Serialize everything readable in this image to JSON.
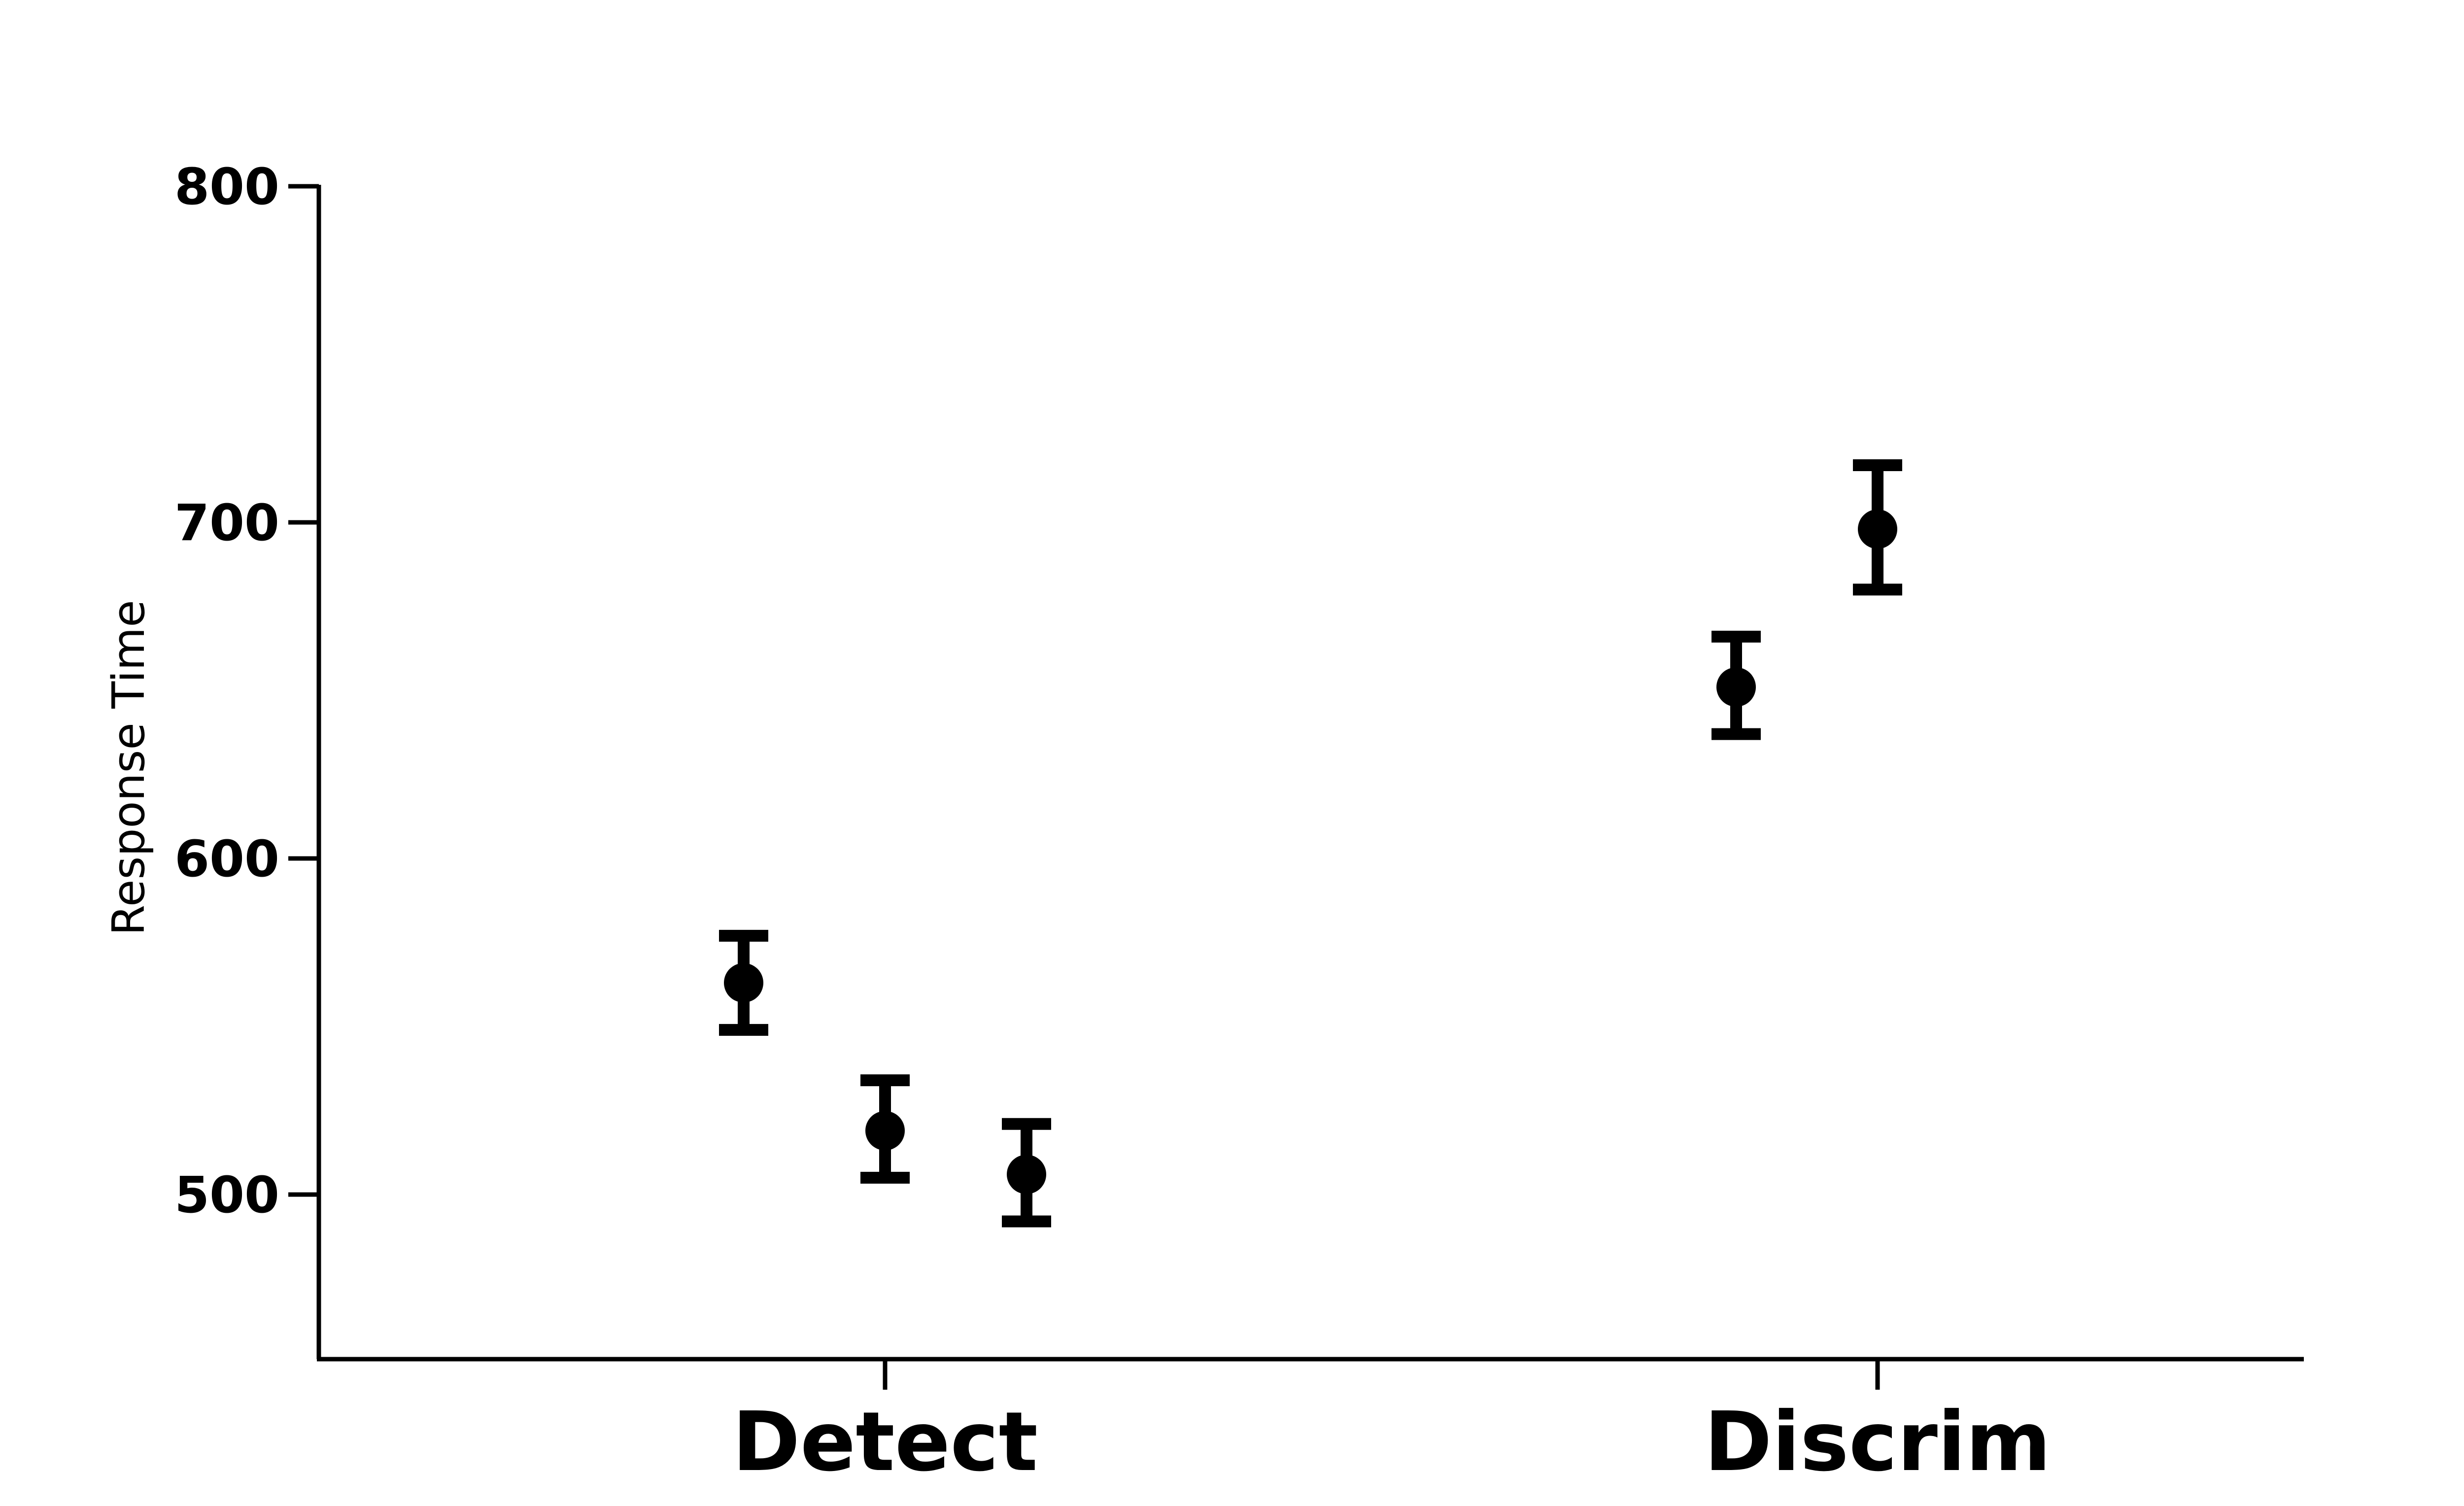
{
  "chart_data": {
    "type": "scatter",
    "title": "",
    "xlabel": "",
    "ylabel": "Response Time",
    "categories": [
      "Detect",
      "Discrim"
    ],
    "ylim": [
      450,
      800
    ],
    "yticks": [
      500,
      600,
      700,
      800
    ],
    "grid": false,
    "legend": "none",
    "marker_color": "#000000",
    "points": [
      {
        "category": "Detect",
        "offset": -1,
        "y": 563,
        "err_low": 549,
        "err_high": 577
      },
      {
        "category": "Detect",
        "offset": 0,
        "y": 519,
        "err_low": 505,
        "err_high": 534
      },
      {
        "category": "Detect",
        "offset": 1,
        "y": 506,
        "err_low": 492,
        "err_high": 521
      },
      {
        "category": "Discrim",
        "offset": -1,
        "y": 651,
        "err_low": 637,
        "err_high": 666
      },
      {
        "category": "Discrim",
        "offset": 0,
        "y": 698,
        "err_low": 680,
        "err_high": 717
      }
    ]
  }
}
